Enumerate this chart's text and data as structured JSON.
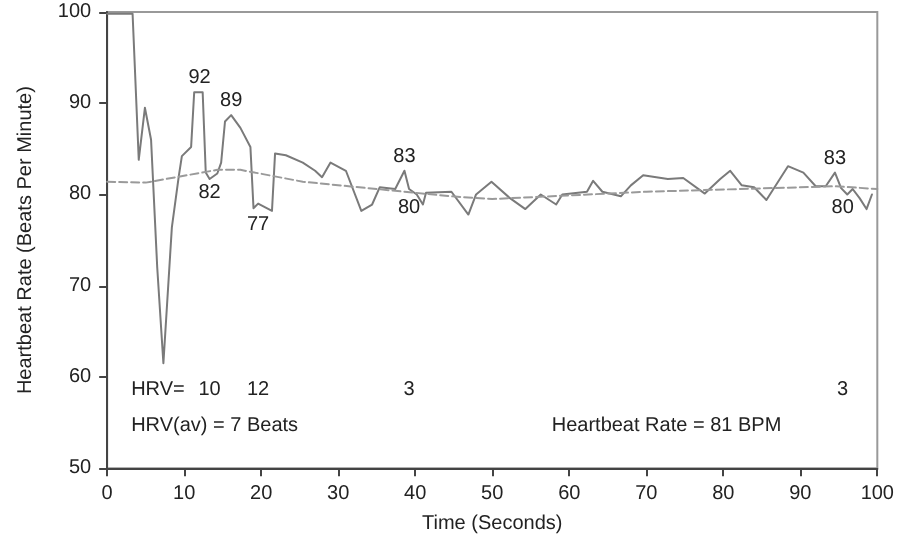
{
  "chart_data": {
    "type": "line",
    "xlabel": "Time (Seconds)",
    "ylabel": "Heartbeat Rate (Beats Per Minute)",
    "xlim": [
      0,
      100
    ],
    "xticks": [
      0,
      10,
      20,
      30,
      40,
      50,
      60,
      70,
      80,
      90,
      100
    ],
    "ylim": [
      50,
      100
    ],
    "yticks": [
      50,
      60,
      70,
      80,
      90,
      100
    ],
    "grid": false,
    "marker": "none",
    "series": [
      {
        "color": "#7a7a7a",
        "line_style": "solid",
        "x": [
          0,
          3.3,
          4.1,
          4.9,
          5.7,
          6.5,
          7.3,
          8.4,
          9.3,
          9.7,
          10.9,
          11.3,
          12.4,
          12.8,
          13.3,
          14.3,
          14.8,
          15.3,
          16.1,
          17.3,
          18.6,
          19,
          19.6,
          21.4,
          21.8,
          23.2,
          25.4,
          27,
          27.9,
          29,
          31,
          33,
          34.4,
          35.4,
          37.4,
          38.6,
          39.2,
          40.2,
          41,
          41.4,
          44.7,
          46.9,
          47.9,
          49.9,
          52.3,
          54.3,
          56.3,
          58.3,
          59.1,
          62.3,
          63.1,
          64.3,
          66.7,
          68,
          69.6,
          72.8,
          74.8,
          77.6,
          79.6,
          80.9,
          82.4,
          84,
          85.6,
          88.4,
          90.4,
          92,
          93.3,
          94.5,
          95.3,
          96.1,
          96.8,
          97.7,
          98.6,
          99.3
        ],
        "values": [
          99.8,
          99.8,
          83.8,
          89.5,
          86,
          72,
          61.5,
          76.4,
          82,
          84.2,
          85.2,
          91.2,
          91.2,
          82.4,
          81.7,
          82.3,
          83.5,
          88,
          88.7,
          87.3,
          85.2,
          78.5,
          79,
          78.2,
          84.5,
          84.3,
          83.5,
          82.6,
          81.9,
          83.5,
          82.6,
          78.2,
          78.9,
          80.8,
          80.6,
          82.6,
          80.6,
          80,
          78.9,
          80.2,
          80.3,
          77.8,
          80,
          81.4,
          79.6,
          78.4,
          80,
          78.9,
          80,
          80.3,
          81.5,
          80.3,
          79.8,
          81,
          82.1,
          81.7,
          81.8,
          80.1,
          81.7,
          82.6,
          81,
          80.8,
          79.4,
          83.1,
          82.4,
          80.9,
          80.9,
          82.4,
          80.7,
          80,
          80.6,
          79.6,
          78.4,
          80
        ]
      },
      {
        "color": "#9a9a9a",
        "line_style": "dashed",
        "x": [
          0,
          5,
          14.3,
          17.3,
          25.4,
          35,
          44.7,
          50,
          70,
          94.5,
          100
        ],
        "values": [
          81.4,
          81.3,
          82.7,
          82.7,
          81.4,
          80.6,
          79.8,
          79.5,
          80.3,
          80.9,
          80.6
        ]
      }
    ],
    "annotations": [
      {
        "text": "92",
        "x": 12,
        "y": 91.2
      },
      {
        "text": "82",
        "x": 13.3,
        "y": 81.7
      },
      {
        "text": "89",
        "x": 16.1,
        "y": 88.7
      },
      {
        "text": "77",
        "x": 19.6,
        "y": 78.2
      },
      {
        "text": "83",
        "x": 38.6,
        "y": 82.6
      },
      {
        "text": "80",
        "x": 39.2,
        "y": 80
      },
      {
        "text": "83",
        "x": 94.5,
        "y": 82.4
      },
      {
        "text": "80",
        "x": 95.5,
        "y": 80
      },
      "HRV=",
      "10",
      "12",
      "3",
      "3",
      "HRV(av) = 7 Beats",
      "Heartbeat Rate = 81 BPM"
    ]
  }
}
